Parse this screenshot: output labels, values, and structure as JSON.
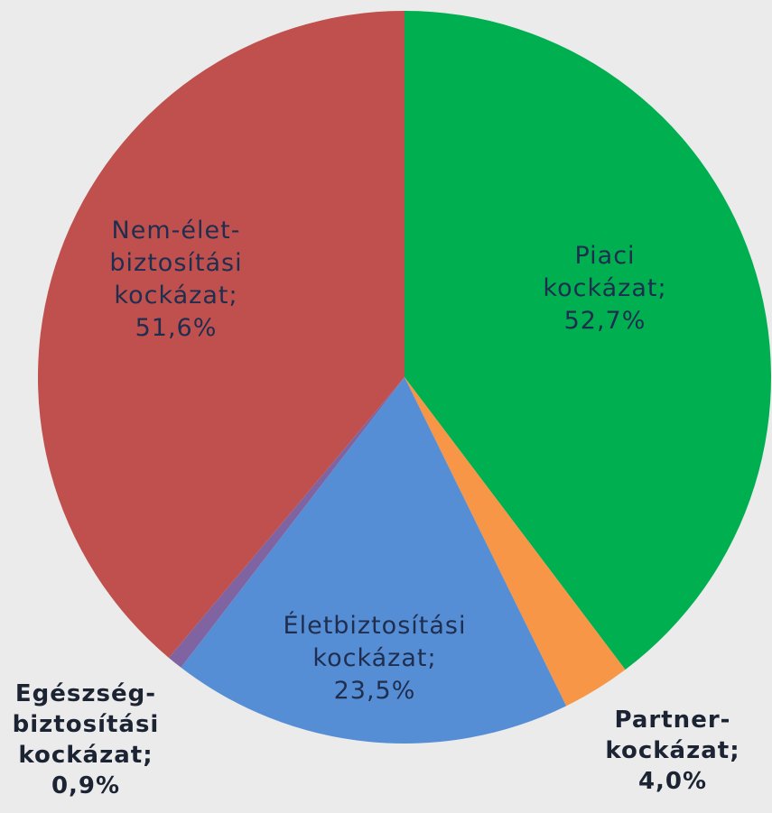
{
  "chart_data": {
    "type": "pie",
    "categories": [
      "Piaci kockázat;",
      "Partner-kockázat;",
      "Életbiztosítási kockázat;",
      "Egészség-biztosítási kockázat;",
      "Nem-élet-biztosítási kockázat;"
    ],
    "values": [
      52.7,
      4.0,
      23.5,
      0.9,
      51.6
    ],
    "value_labels": [
      "52,7%",
      "4,0%",
      "23,5%",
      "0,9%",
      "51,6%"
    ],
    "colors": [
      "#00b050",
      "#f79646",
      "#558ed5",
      "#8064a2",
      "#c0504d"
    ]
  }
}
